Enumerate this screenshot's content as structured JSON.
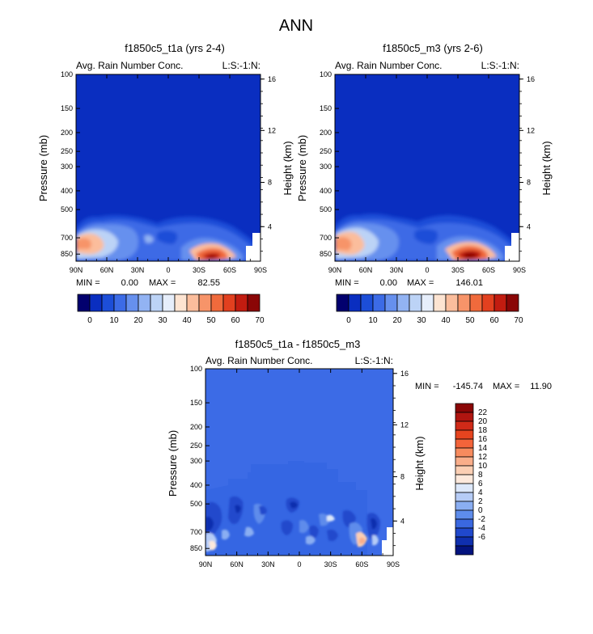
{
  "figure_title": "ANN",
  "colors": {
    "background_field": "#0a2ec0",
    "diff_background_field": "#3c6be6"
  },
  "chart_data": [
    {
      "type": "heatmap",
      "title": "f1850c5_t1a (yrs 2-4)",
      "subtitle_left": "Avg. Rain Number Conc.",
      "subtitle_right": "L:S:-1:N:",
      "xlabel": "",
      "ylabel": "Pressure (mb)",
      "ylabel_right": "Height (km)",
      "x_ticks": [
        "90N",
        "60N",
        "30N",
        "0",
        "30S",
        "60S",
        "90S"
      ],
      "y_ticks": [
        "100",
        "150",
        "200",
        "250",
        "300",
        "400",
        "500",
        "700",
        "850"
      ],
      "y_ticks_right": [
        "16",
        "12",
        "8",
        "4"
      ],
      "stats": {
        "min_label": "MIN =",
        "min": "0.00",
        "max_label": "MAX =",
        "max": "82.55"
      },
      "colorbar": {
        "orientation": "horizontal",
        "labels": [
          "0",
          "10",
          "20",
          "30",
          "40",
          "50",
          "60",
          "70"
        ],
        "colors": [
          "#02006e",
          "#0a2ec0",
          "#1c4ed8",
          "#3c6be6",
          "#6690ee",
          "#92b3f3",
          "#bcd3f6",
          "#e6eefb",
          "#fde4d2",
          "#fbbd9c",
          "#f79469",
          "#f06a3c",
          "#e2401f",
          "#c21c10",
          "#8a0606"
        ]
      }
    },
    {
      "type": "heatmap",
      "title": "f1850c5_m3 (yrs 2-6)",
      "subtitle_left": "Avg. Rain Number Conc.",
      "subtitle_right": "L:S:-1:N:",
      "xlabel": "",
      "ylabel": "Pressure (mb)",
      "ylabel_right": "Height (km)",
      "x_ticks": [
        "90N",
        "60N",
        "30N",
        "0",
        "30S",
        "60S",
        "90S"
      ],
      "y_ticks": [
        "100",
        "150",
        "200",
        "250",
        "300",
        "400",
        "500",
        "700",
        "850"
      ],
      "y_ticks_right": [
        "16",
        "12",
        "8",
        "4"
      ],
      "stats": {
        "min_label": "MIN =",
        "min": "0.00",
        "max_label": "MAX =",
        "max": "146.01"
      },
      "colorbar": {
        "orientation": "horizontal",
        "labels": [
          "0",
          "10",
          "20",
          "30",
          "40",
          "50",
          "60",
          "70"
        ],
        "colors": [
          "#02006e",
          "#0a2ec0",
          "#1c4ed8",
          "#3c6be6",
          "#6690ee",
          "#92b3f3",
          "#bcd3f6",
          "#e6eefb",
          "#fde4d2",
          "#fbbd9c",
          "#f79469",
          "#f06a3c",
          "#e2401f",
          "#c21c10",
          "#8a0606"
        ]
      }
    },
    {
      "type": "heatmap",
      "title": "f1850c5_t1a - f1850c5_m3",
      "subtitle_left": "Avg. Rain Number Conc.",
      "subtitle_right": "L:S:-1:N:",
      "xlabel": "",
      "ylabel": "Pressure (mb)",
      "ylabel_right": "Height (km)",
      "x_ticks": [
        "90N",
        "60N",
        "30N",
        "0",
        "30S",
        "60S",
        "90S"
      ],
      "y_ticks": [
        "100",
        "150",
        "200",
        "250",
        "300",
        "400",
        "500",
        "700",
        "850"
      ],
      "y_ticks_right": [
        "16",
        "12",
        "8",
        "4"
      ],
      "stats": {
        "min_label": "MIN =",
        "min": "-145.74",
        "max_label": "MAX =",
        "max": "11.90"
      },
      "colorbar": {
        "orientation": "vertical",
        "labels": [
          "22",
          "20",
          "18",
          "16",
          "14",
          "12",
          "10",
          "8",
          "6",
          "4",
          "2",
          "0",
          "-2",
          "-4",
          "-6"
        ],
        "colors": [
          "#8a0606",
          "#b01510",
          "#d02a18",
          "#e6441f",
          "#f3643a",
          "#f78b5e",
          "#f9ae8a",
          "#fbcfb4",
          "#fde9dc",
          "#dde8fa",
          "#b6ccf6",
          "#8aaef2",
          "#5e8ceb",
          "#3a68e0",
          "#2048cc",
          "#0f2fae",
          "#03137e"
        ]
      }
    }
  ]
}
